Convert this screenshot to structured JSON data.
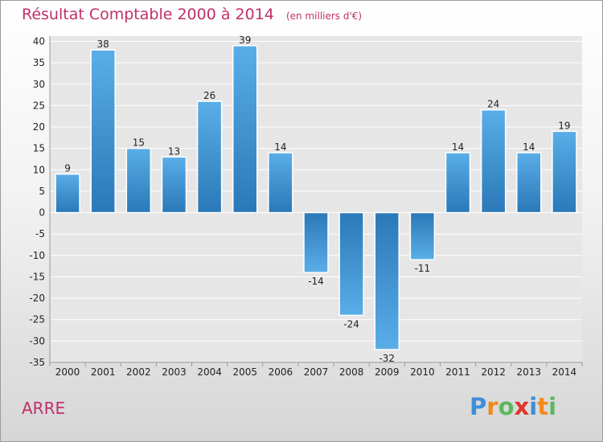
{
  "chart_data": {
    "type": "bar",
    "title": "Résultat Comptable 2000 à 2014",
    "subtitle": "(en milliers d'€)",
    "categories": [
      "2000",
      "2001",
      "2002",
      "2003",
      "2004",
      "2005",
      "2006",
      "2007",
      "2008",
      "2009",
      "2010",
      "2011",
      "2012",
      "2013",
      "2014"
    ],
    "values": [
      9,
      38,
      15,
      13,
      26,
      39,
      14,
      -14,
      -24,
      -32,
      -11,
      14,
      24,
      14,
      19
    ],
    "data_labels": [
      "9",
      "38",
      "15",
      "13",
      "26",
      "39",
      "14",
      "-14",
      "-24",
      "-32",
      "-11",
      "14",
      "24",
      "14",
      "19"
    ],
    "y_ticks": [
      40,
      35,
      30,
      25,
      20,
      15,
      10,
      5,
      0,
      -5,
      -10,
      -15,
      -20,
      -25,
      -30,
      -35
    ],
    "y_tick_labels": [
      "40",
      "35",
      "30",
      "25",
      "20",
      "15",
      "10",
      "5",
      "0",
      "-5",
      "-10",
      "-15",
      "-20",
      "-25",
      "-30",
      "-35"
    ],
    "ylim": [
      -35,
      40
    ],
    "xlabel": "",
    "ylabel": "",
    "grid": true,
    "colors": {
      "bar_light": "#5aaee8",
      "bar_dark": "#2a78b8",
      "grid": "#ffffff",
      "text_accent": "#c0306a"
    }
  },
  "place_name": "ARRE",
  "logo": {
    "text": "Proxiti",
    "letters": [
      "P",
      "r",
      "o",
      "x",
      "i",
      "t",
      "i"
    ],
    "colors": [
      "#3d8fd8",
      "#f08a1c",
      "#5cb85c",
      "#e0342c",
      "#3d8fd8",
      "#f08a1c",
      "#5cb85c"
    ]
  }
}
